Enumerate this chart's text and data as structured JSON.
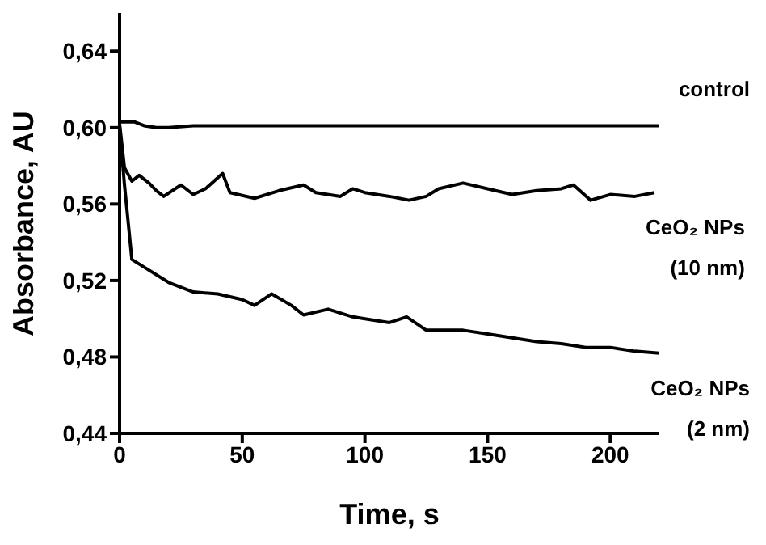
{
  "chart_data": {
    "type": "line",
    "xlabel": "Time, s",
    "ylabel": "Absorbance, AU",
    "xlim": [
      0,
      220
    ],
    "xticks": [
      0,
      50,
      100,
      150,
      200
    ],
    "ylim": [
      0.44,
      0.66
    ],
    "yticks": [
      {
        "value": 0.44,
        "label": "0,44"
      },
      {
        "value": 0.48,
        "label": "0,48"
      },
      {
        "value": 0.52,
        "label": "0,52"
      },
      {
        "value": 0.56,
        "label": "0,56"
      },
      {
        "value": 0.6,
        "label": "0,60"
      },
      {
        "value": 0.64,
        "label": "0,64"
      }
    ],
    "grid": false,
    "legend": false,
    "marker": "none",
    "line_style": "solid",
    "series": [
      {
        "name": "control",
        "color": "#000000",
        "x": [
          0,
          3,
          6,
          10,
          15,
          20,
          30,
          50,
          100,
          150,
          200,
          220
        ],
        "values": [
          0.603,
          0.603,
          0.603,
          0.601,
          0.6,
          0.6,
          0.601,
          0.601,
          0.601,
          0.601,
          0.601,
          0.601
        ]
      },
      {
        "name": "CeO₂ NPs (10 nm)",
        "color": "#000000",
        "x": [
          0,
          2,
          5,
          8,
          12,
          15,
          18,
          25,
          30,
          35,
          42,
          45,
          55,
          65,
          75,
          80,
          90,
          95,
          100,
          110,
          118,
          125,
          130,
          140,
          150,
          160,
          170,
          180,
          185,
          192,
          200,
          210,
          218
        ],
        "values": [
          0.602,
          0.579,
          0.572,
          0.575,
          0.571,
          0.567,
          0.564,
          0.57,
          0.565,
          0.568,
          0.576,
          0.566,
          0.563,
          0.567,
          0.57,
          0.566,
          0.564,
          0.568,
          0.566,
          0.564,
          0.562,
          0.564,
          0.568,
          0.571,
          0.568,
          0.565,
          0.567,
          0.568,
          0.57,
          0.562,
          0.565,
          0.564,
          0.566
        ]
      },
      {
        "name": "CeO₂ NPs (2 nm)",
        "color": "#000000",
        "x": [
          0,
          2,
          5,
          10,
          20,
          30,
          40,
          50,
          55,
          62,
          70,
          75,
          85,
          95,
          100,
          110,
          117,
          125,
          140,
          150,
          160,
          170,
          180,
          190,
          200,
          210,
          220
        ],
        "values": [
          0.6,
          0.57,
          0.531,
          0.527,
          0.519,
          0.514,
          0.513,
          0.51,
          0.507,
          0.513,
          0.507,
          0.502,
          0.505,
          0.501,
          0.5,
          0.498,
          0.501,
          0.494,
          0.494,
          0.492,
          0.49,
          0.488,
          0.487,
          0.485,
          0.485,
          0.483,
          0.482
        ]
      }
    ]
  }
}
